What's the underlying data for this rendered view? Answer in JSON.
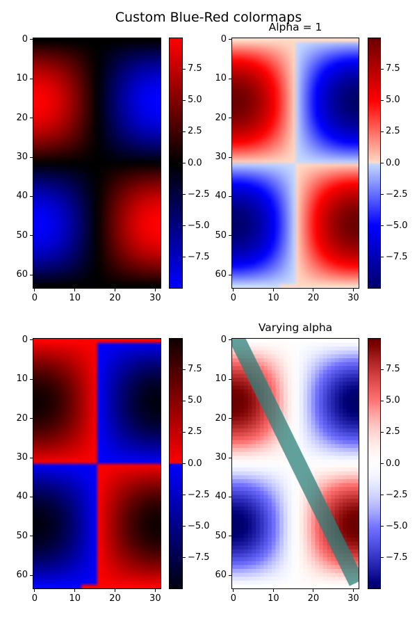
{
  "figure": {
    "suptitle": "Custom Blue-Red colormaps",
    "background": "#ffffff"
  },
  "chart_data": [
    {
      "type": "heatmap",
      "title": "",
      "position": "top-left",
      "colormap": "BlueRed1",
      "colormap_stops": [
        [
          "#0000ff",
          0.0
        ],
        [
          "#000000",
          0.5
        ],
        [
          "#ff0000",
          1.0
        ]
      ],
      "function": "sin(x)*cos(y) style quadrant pattern",
      "grid_shape": [
        64,
        32
      ],
      "xlim": [
        -0.5,
        31.5
      ],
      "ylim": [
        63.5,
        -0.5
      ],
      "xticks": [
        0,
        10,
        20,
        30
      ],
      "yticks": [
        0,
        10,
        20,
        30,
        40,
        50,
        60
      ],
      "colorbar": {
        "vmin": -10,
        "vmax": 10,
        "ticks": [
          "7.5",
          "5.0",
          "2.5",
          "0.0",
          "−2.5",
          "−5.0",
          "−7.5"
        ]
      }
    },
    {
      "type": "heatmap",
      "title": "Alpha = 1",
      "position": "top-right",
      "colormap": "BlueRed3 (seismic-like)",
      "colormap_stops": [
        [
          "#00006b",
          0.0
        ],
        [
          "#0000ff",
          0.25
        ],
        [
          "#c8dcff",
          0.5
        ],
        [
          "#ffdcc8",
          0.5
        ],
        [
          "#ff0000",
          0.75
        ],
        [
          "#6b0000",
          1.0
        ]
      ],
      "grid_shape": [
        64,
        32
      ],
      "xlim": [
        -0.5,
        31.5
      ],
      "ylim": [
        63.5,
        -0.5
      ],
      "xticks": [
        0,
        10,
        20,
        30
      ],
      "yticks": [
        0,
        10,
        20,
        30,
        40,
        50,
        60
      ],
      "colorbar": {
        "vmin": -10,
        "vmax": 10,
        "ticks": [
          "7.5",
          "5.0",
          "2.5",
          "0.0",
          "−2.5",
          "−5.0",
          "−7.5"
        ]
      }
    },
    {
      "type": "heatmap",
      "title": "",
      "position": "bottom-left",
      "colormap": "BlueRed2",
      "colormap_stops": [
        [
          "#000010",
          0.0
        ],
        [
          "#0000ff",
          0.5
        ],
        [
          "#ff0000",
          0.5
        ],
        [
          "#100000",
          1.0
        ]
      ],
      "grid_shape": [
        64,
        32
      ],
      "xlim": [
        -0.5,
        31.5
      ],
      "ylim": [
        63.5,
        -0.5
      ],
      "xticks": [
        0,
        10,
        20,
        30
      ],
      "yticks": [
        0,
        10,
        20,
        30,
        40,
        50,
        60
      ],
      "colorbar": {
        "vmin": -10,
        "vmax": 10,
        "ticks": [
          "7.5",
          "5.0",
          "2.5",
          "0.0",
          "−2.5",
          "−5.0",
          "−7.5"
        ]
      }
    },
    {
      "type": "heatmap",
      "title": "Varying alpha",
      "position": "bottom-right",
      "colormap": "BlueRedAlpha",
      "colormap_stops": [
        [
          "#00006b",
          0.0
        ],
        [
          "#0000ff",
          0.25
        ],
        [
          "#ffffff",
          0.5
        ],
        [
          "#ff0000",
          0.75
        ],
        [
          "#6b0000",
          1.0
        ]
      ],
      "alpha_varies_with_magnitude": true,
      "overlay_line": {
        "color": "#3ecbc0",
        "from": [
          0,
          0
        ],
        "to": [
          30,
          62
        ],
        "width_note": "thick diagonal band"
      },
      "grid_shape": [
        64,
        32
      ],
      "xlim": [
        -0.5,
        31.5
      ],
      "ylim": [
        63.5,
        -0.5
      ],
      "xticks": [
        0,
        10,
        20,
        30
      ],
      "yticks": [
        0,
        10,
        20,
        30,
        40,
        50,
        60
      ],
      "colorbar": {
        "vmin": -10,
        "vmax": 10,
        "ticks": [
          "7.5",
          "5.0",
          "2.5",
          "0.0",
          "−2.5",
          "−5.0",
          "−7.5"
        ]
      }
    }
  ],
  "labels": {
    "xticks": [
      "0",
      "10",
      "20",
      "30"
    ],
    "yticks": [
      "0",
      "10",
      "20",
      "30",
      "40",
      "50",
      "60"
    ],
    "cbar_ticks": [
      "7.5",
      "5.0",
      "2.5",
      "0.0",
      "−2.5",
      "−5.0",
      "−7.5"
    ],
    "title_tr": "Alpha = 1",
    "title_br": "Varying alpha"
  }
}
